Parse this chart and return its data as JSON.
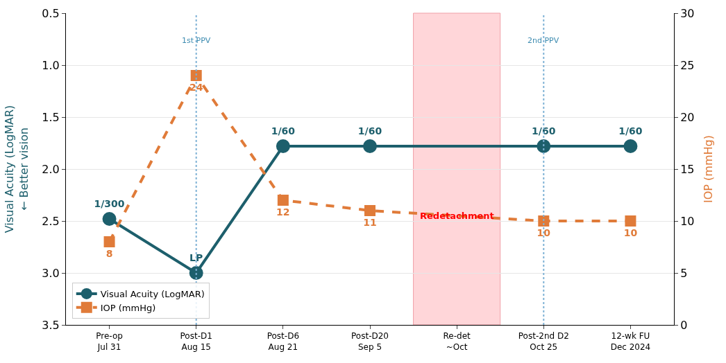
{
  "chart_data": {
    "type": "line",
    "categories": [
      "Pre-op\nJul 31",
      "Post-D1\nAug 15",
      "Post-D6\nAug 21",
      "Post-D20\nSep 5",
      "Re-det\n~Oct",
      "Post-2nd D2\nOct 25",
      "12-wk FU\nDec 2024"
    ],
    "series": [
      {
        "name": "Visual Acuity (LogMAR)",
        "color": "#1d5f6c",
        "marker": "circle",
        "line_style": "solid",
        "values": [
          2.48,
          3.0,
          1.78,
          1.78,
          null,
          1.78,
          1.78
        ],
        "value_labels": [
          "1/300",
          "LP",
          "1/60",
          "1/60",
          null,
          "1/60",
          "1/60"
        ]
      },
      {
        "name": "IOP (mmHg)",
        "color": "#e07b39",
        "marker": "square",
        "line_style": "dashed",
        "axis": "y2",
        "values": [
          8,
          24,
          12,
          11,
          null,
          10,
          10
        ],
        "value_labels": [
          "8",
          "24",
          "12",
          "11",
          null,
          "10",
          "10"
        ]
      }
    ],
    "ylabel": "Visual Acuity (LogMAR)\n← Better vision",
    "y2label": "IOP (mmHg)",
    "ylim": [
      3.5,
      0.5
    ],
    "yticks": [
      {
        "value": 0.5,
        "label": "0.5"
      },
      {
        "value": 1.0,
        "label": "1.0"
      },
      {
        "value": 1.5,
        "label": "1.5"
      },
      {
        "value": 2.0,
        "label": "2.0"
      },
      {
        "value": 2.5,
        "label": "2.5"
      },
      {
        "value": 3.0,
        "label": "3.0"
      },
      {
        "value": 3.5,
        "label": "3.5"
      }
    ],
    "y2lim": [
      0,
      30
    ],
    "y2ticks": [
      0,
      5,
      10,
      15,
      20,
      25,
      30
    ],
    "ref_lines": [
      {
        "axis": "x",
        "value": "Post-D1\nAug 15",
        "label": "1st PPV",
        "color": "#7fb2d5",
        "line_style": "dotted"
      },
      {
        "axis": "x",
        "value": "Post-2nd D2\nOct 25",
        "label": "2nd PPV",
        "color": "#7fb2d5",
        "line_style": "dotted"
      }
    ],
    "bands": [
      {
        "axis": "x",
        "from": "Re-det\n~Oct",
        "to": "Re-det\n~Oct",
        "label": "Redetachment",
        "color": "#ffd6d9"
      }
    ],
    "grid": "y",
    "legend": "bottom left"
  }
}
